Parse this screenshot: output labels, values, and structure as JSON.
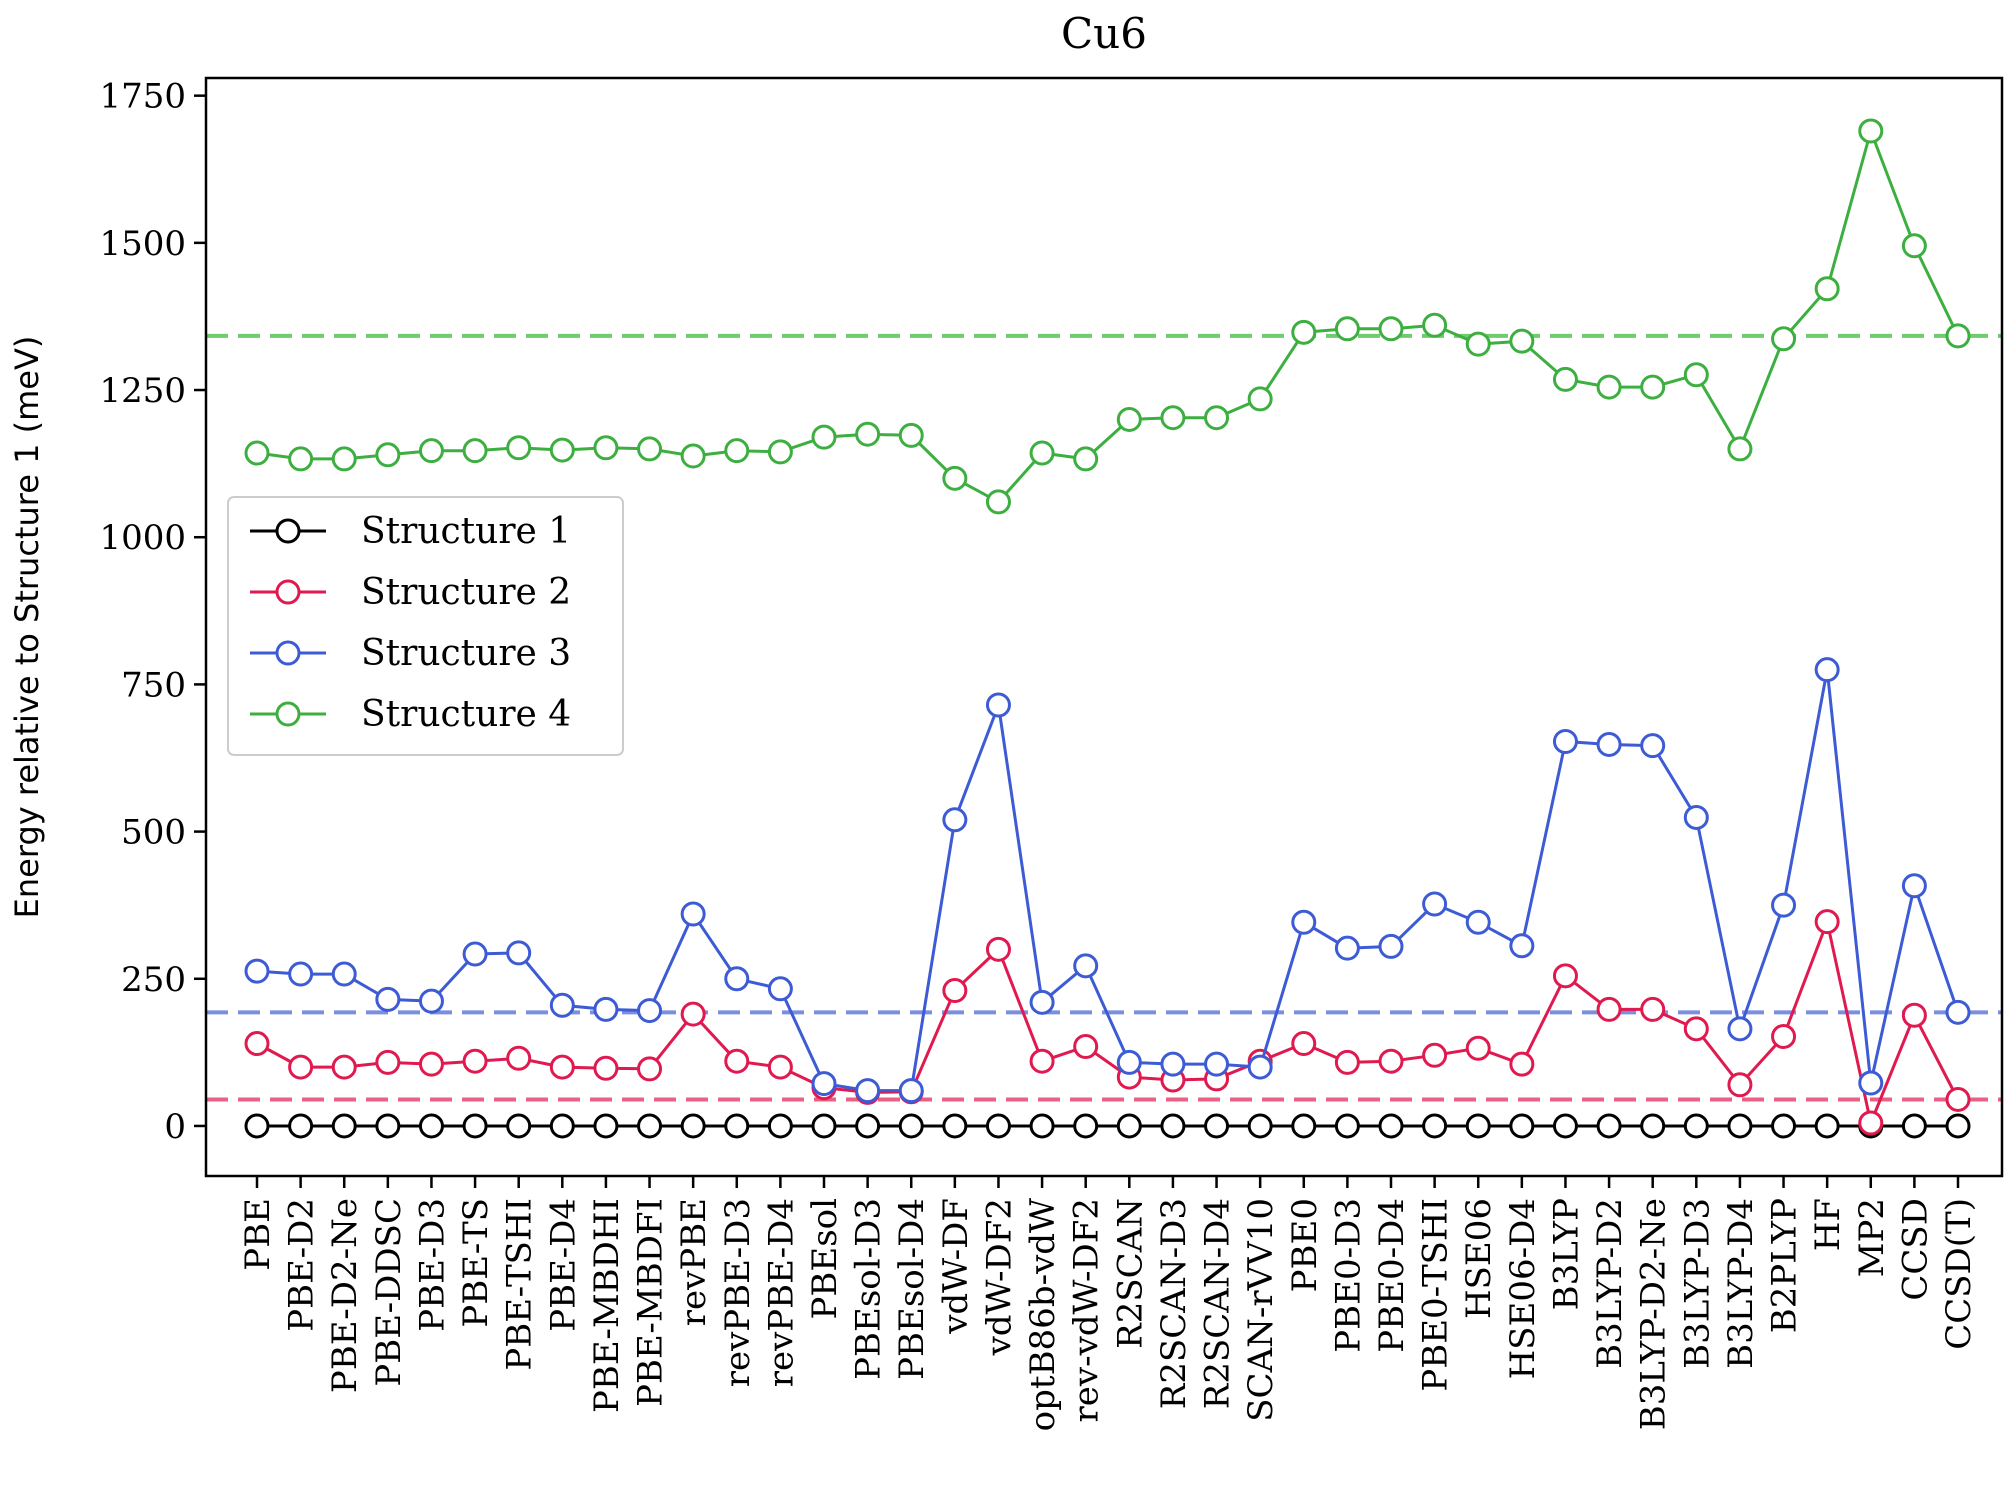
{
  "chart_data": {
    "type": "line",
    "title": "Cu6",
    "xlabel": "",
    "ylabel": "Energy relative to Structure 1 (meV)",
    "ylim": [
      -85,
      1780
    ],
    "yticks": [
      0,
      250,
      500,
      750,
      1000,
      1250,
      1500,
      1750
    ],
    "grid": false,
    "legend_position": "center-left",
    "categories": [
      "PBE",
      "PBE-D2",
      "PBE-D2-Ne",
      "PBE-DDSC",
      "PBE-D3",
      "PBE-TS",
      "PBE-TSHI",
      "PBE-D4",
      "PBE-MBDHI",
      "PBE-MBDFI",
      "revPBE",
      "revPBE-D3",
      "revPBE-D4",
      "PBEsol",
      "PBEsol-D3",
      "PBEsol-D4",
      "vdW-DF",
      "vdW-DF2",
      "optB86b-vdW",
      "rev-vdW-DF2",
      "R2SCAN",
      "R2SCAN-D3",
      "R2SCAN-D4",
      "SCAN-rVV10",
      "PBE0",
      "PBE0-D3",
      "PBE0-D4",
      "PBE0-TSHI",
      "HSE06",
      "HSE06-D4",
      "B3LYP",
      "B3LYP-D2",
      "B3LYP-D2-Ne",
      "B3LYP-D3",
      "B3LYP-D4",
      "B2PLYP",
      "HF",
      "MP2",
      "CCSD",
      "CCSD(T)"
    ],
    "series": [
      {
        "name": "Structure 1",
        "color": "#000000",
        "values": [
          0,
          0,
          0,
          0,
          0,
          0,
          0,
          0,
          0,
          0,
          0,
          0,
          0,
          0,
          0,
          0,
          0,
          0,
          0,
          0,
          0,
          0,
          0,
          0,
          0,
          0,
          0,
          0,
          0,
          0,
          0,
          0,
          0,
          0,
          0,
          0,
          0,
          0,
          0,
          0
        ]
      },
      {
        "name": "Structure 2",
        "color": "#e0194f",
        "values": [
          140,
          100,
          100,
          108,
          105,
          110,
          115,
          100,
          98,
          97,
          190,
          110,
          100,
          65,
          57,
          58,
          230,
          300,
          110,
          135,
          83,
          78,
          80,
          110,
          140,
          108,
          110,
          120,
          132,
          105,
          255,
          198,
          198,
          165,
          70,
          152,
          347,
          5,
          188,
          45
        ]
      },
      {
        "name": "Structure 3",
        "color": "#3c5bd4",
        "values": [
          263,
          258,
          258,
          215,
          212,
          292,
          294,
          205,
          198,
          196,
          360,
          250,
          233,
          72,
          60,
          60,
          520,
          715,
          210,
          272,
          108,
          105,
          105,
          100,
          346,
          302,
          305,
          377,
          346,
          306,
          653,
          648,
          646,
          524,
          165,
          375,
          775,
          73,
          408,
          193
        ]
      },
      {
        "name": "Structure 4",
        "color": "#3daf40",
        "values": [
          1143,
          1133,
          1133,
          1140,
          1147,
          1147,
          1152,
          1148,
          1152,
          1150,
          1138,
          1147,
          1145,
          1170,
          1175,
          1173,
          1100,
          1060,
          1143,
          1133,
          1200,
          1203,
          1203,
          1235,
          1348,
          1354,
          1354,
          1360,
          1328,
          1333,
          1268,
          1255,
          1255,
          1276,
          1150,
          1337,
          1422,
          1690,
          1495,
          1342
        ]
      }
    ],
    "reference_lines": [
      {
        "series": "Structure 2",
        "value": 45,
        "color": "#ea5f84"
      },
      {
        "series": "Structure 3",
        "value": 193,
        "color": "#7a8fe2"
      },
      {
        "series": "Structure 4",
        "value": 1342,
        "color": "#6fca70"
      }
    ]
  }
}
